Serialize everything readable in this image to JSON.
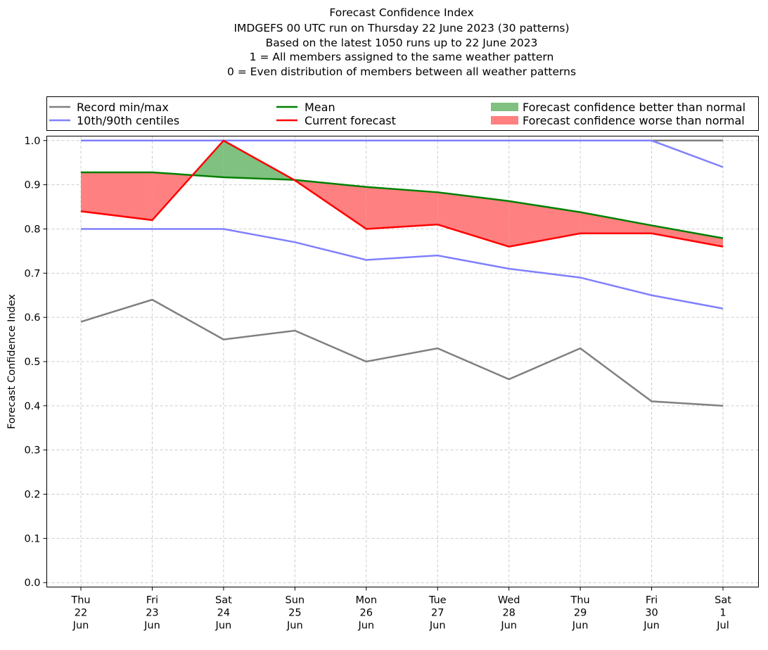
{
  "chart_data": {
    "type": "line",
    "title_lines": [
      "Forecast Confidence Index",
      "IMDGEFS 00 UTC run on Thursday 22 June 2023 (30 patterns)",
      "Based on the latest 1050 runs up to 22 June 2023",
      "1 = All members assigned to the same weather pattern",
      "0 = Even distribution of members between all weather patterns"
    ],
    "xlabel": "",
    "ylabel": "Forecast Confidence Index",
    "ylim": [
      -0.01,
      1.01
    ],
    "yticks": [
      0.0,
      0.1,
      0.2,
      0.3,
      0.4,
      0.5,
      0.6,
      0.7,
      0.8,
      0.9,
      1.0
    ],
    "ytick_labels": [
      "0.0",
      "0.1",
      "0.2",
      "0.3",
      "0.4",
      "0.5",
      "0.6",
      "0.7",
      "0.8",
      "0.9",
      "1.0"
    ],
    "categories": [
      [
        "Thu",
        "22",
        "Jun"
      ],
      [
        "Fri",
        "23",
        "Jun"
      ],
      [
        "Sat",
        "24",
        "Jun"
      ],
      [
        "Sun",
        "25",
        "Jun"
      ],
      [
        "Mon",
        "26",
        "Jun"
      ],
      [
        "Tue",
        "27",
        "Jun"
      ],
      [
        "Wed",
        "28",
        "Jun"
      ],
      [
        "Thu",
        "29",
        "Jun"
      ],
      [
        "Fri",
        "30",
        "Jun"
      ],
      [
        "Sat",
        "1",
        "Jul"
      ]
    ],
    "grid": true,
    "legend_position": "top, above plot (3 columns)",
    "series": [
      {
        "name": "Record min/max",
        "role": "record_max",
        "color": "#808080",
        "values": [
          1.0,
          1.0,
          1.0,
          1.0,
          1.0,
          1.0,
          1.0,
          1.0,
          1.0,
          1.0
        ]
      },
      {
        "name": "Record min/max",
        "role": "record_min",
        "color": "#808080",
        "values": [
          0.59,
          0.64,
          0.55,
          0.57,
          0.5,
          0.53,
          0.46,
          0.53,
          0.41,
          0.4
        ]
      },
      {
        "name": "10th/90th centiles",
        "role": "p90",
        "color": "#8080ff",
        "values": [
          1.0,
          1.0,
          1.0,
          1.0,
          1.0,
          1.0,
          1.0,
          1.0,
          1.0,
          0.94
        ]
      },
      {
        "name": "10th/90th centiles",
        "role": "p10",
        "color": "#8080ff",
        "values": [
          0.8,
          0.8,
          0.8,
          0.77,
          0.73,
          0.74,
          0.71,
          0.69,
          0.65,
          0.62
        ]
      },
      {
        "name": "Mean",
        "role": "mean",
        "color": "#008000",
        "values": [
          0.928,
          0.928,
          0.917,
          0.911,
          0.895,
          0.883,
          0.863,
          0.838,
          0.808,
          0.779
        ]
      },
      {
        "name": "Current forecast",
        "role": "current",
        "color": "#ff0000",
        "values": [
          0.84,
          0.82,
          1.0,
          0.91,
          0.8,
          0.81,
          0.76,
          0.79,
          0.79,
          0.76
        ]
      }
    ],
    "fills": [
      {
        "name": "Forecast confidence better than normal",
        "color": "#80c080",
        "condition": "current > mean"
      },
      {
        "name": "Forecast confidence worse than normal",
        "color": "#ff8080",
        "condition": "current < mean"
      }
    ],
    "legend": [
      {
        "label": "Record min/max",
        "kind": "line",
        "color": "#808080"
      },
      {
        "label": "10th/90th centiles",
        "kind": "line",
        "color": "#8080ff"
      },
      {
        "label": "Mean",
        "kind": "line",
        "color": "#008000"
      },
      {
        "label": "Current forecast",
        "kind": "line",
        "color": "#ff0000"
      },
      {
        "label": "Forecast confidence better than normal",
        "kind": "patch",
        "color": "#80c080"
      },
      {
        "label": "Forecast confidence worse than normal",
        "kind": "patch",
        "color": "#ff8080"
      }
    ]
  }
}
